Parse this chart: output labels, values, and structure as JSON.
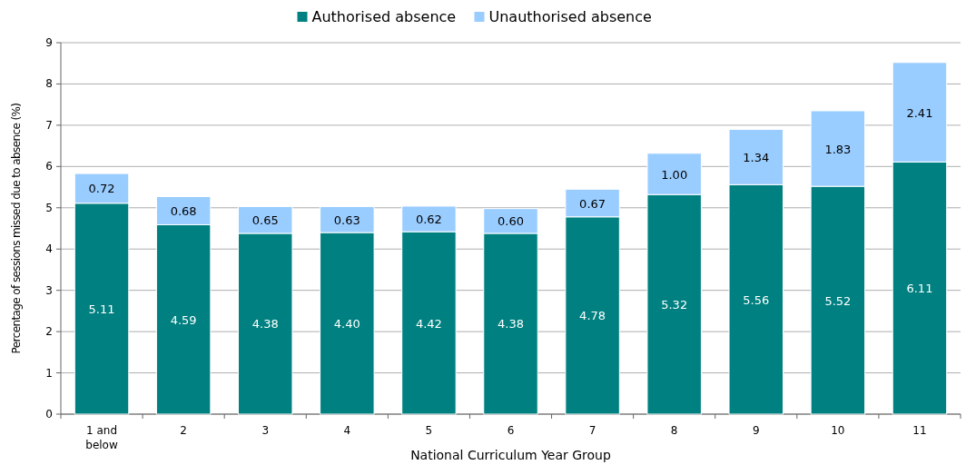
{
  "chart_data": {
    "type": "bar",
    "stacked": true,
    "categories": [
      "1 and below",
      "2",
      "3",
      "4",
      "5",
      "6",
      "7",
      "8",
      "9",
      "10",
      "11"
    ],
    "series": [
      {
        "name": "Authorised absence",
        "color": "#008080",
        "values": [
          5.11,
          4.59,
          4.38,
          4.4,
          4.42,
          4.38,
          4.78,
          5.32,
          5.56,
          5.52,
          6.11
        ],
        "value_labels": [
          "5.11",
          "4.59",
          "4.38",
          "4.40",
          "4.42",
          "4.38",
          "4.78",
          "5.32",
          "5.56",
          "5.52",
          "6.11"
        ]
      },
      {
        "name": "Unauthorised absence",
        "color": "#99ccff",
        "values": [
          0.72,
          0.68,
          0.65,
          0.63,
          0.62,
          0.6,
          0.67,
          1.0,
          1.34,
          1.83,
          2.41
        ],
        "value_labels": [
          "0.72",
          "0.68",
          "0.65",
          "0.63",
          "0.62",
          "0.60",
          "0.67",
          "1.00",
          "1.34",
          "1.83",
          "2.41"
        ]
      }
    ],
    "xlabel": "National Curriculum Year Group",
    "ylabel": "Percentage of sessions missed due to absence (%)",
    "ylim": [
      0,
      9
    ],
    "yticks": [
      0,
      1,
      2,
      3,
      4,
      5,
      6,
      7,
      8,
      9
    ],
    "grid": "y",
    "legend": "top"
  }
}
